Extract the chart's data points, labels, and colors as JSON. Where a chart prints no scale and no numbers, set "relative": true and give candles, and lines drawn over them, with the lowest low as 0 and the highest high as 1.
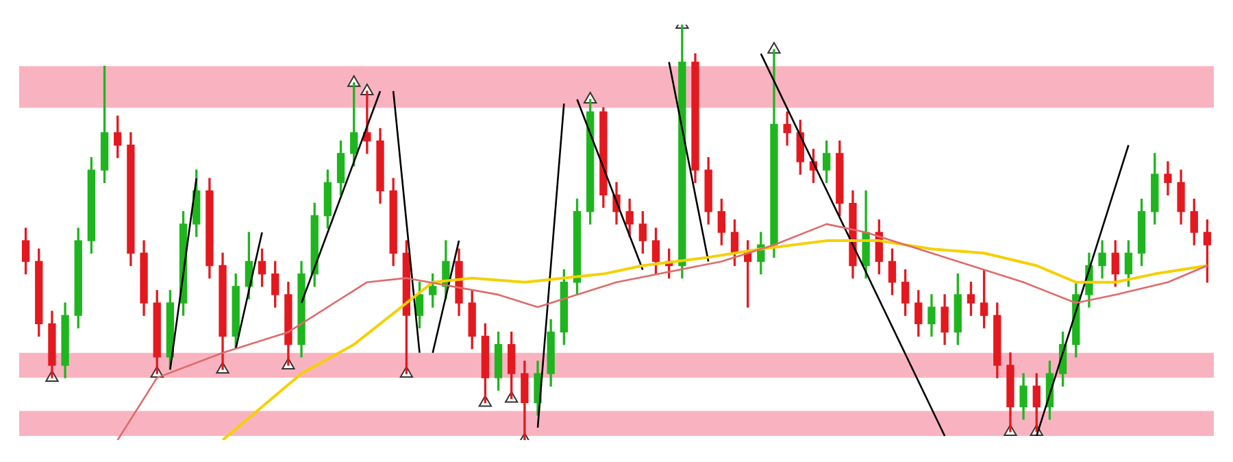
{
  "chart_data": {
    "type": "candlestick",
    "relative": true,
    "categories": [
      null,
      null,
      null,
      null,
      null,
      null,
      null,
      null,
      null,
      null,
      null,
      null,
      null,
      null,
      null,
      null,
      null,
      null,
      null,
      null,
      null,
      null,
      null,
      null,
      null,
      null,
      null,
      null,
      null,
      null,
      null,
      null,
      null,
      null,
      null,
      null,
      null,
      null,
      null,
      null,
      null,
      null,
      null,
      null,
      null,
      null,
      null,
      null,
      null,
      null,
      null,
      null,
      null,
      null,
      null,
      null,
      null,
      null,
      null,
      null,
      null,
      null,
      null,
      null,
      null,
      null,
      null,
      null,
      null,
      null,
      null,
      null,
      null,
      null,
      null,
      null,
      null,
      null,
      null,
      null,
      null,
      null,
      null,
      null,
      null,
      null,
      null,
      null,
      null,
      null,
      null
    ],
    "ohlc": [
      [
        0.48,
        0.51,
        0.4,
        0.43
      ],
      [
        0.43,
        0.46,
        0.25,
        0.28
      ],
      [
        0.28,
        0.31,
        0.15,
        0.18
      ],
      [
        0.18,
        0.33,
        0.15,
        0.3
      ],
      [
        0.3,
        0.51,
        0.27,
        0.48
      ],
      [
        0.48,
        0.68,
        0.45,
        0.65
      ],
      [
        0.65,
        0.9,
        0.62,
        0.74
      ],
      [
        0.74,
        0.78,
        0.68,
        0.71
      ],
      [
        0.71,
        0.74,
        0.42,
        0.45
      ],
      [
        0.45,
        0.48,
        0.3,
        0.33
      ],
      [
        0.33,
        0.36,
        0.16,
        0.2
      ],
      [
        0.2,
        0.36,
        0.17,
        0.33
      ],
      [
        0.33,
        0.55,
        0.3,
        0.52
      ],
      [
        0.52,
        0.65,
        0.49,
        0.6
      ],
      [
        0.6,
        0.63,
        0.39,
        0.42
      ],
      [
        0.42,
        0.45,
        0.17,
        0.25
      ],
      [
        0.25,
        0.4,
        0.22,
        0.37
      ],
      [
        0.37,
        0.5,
        0.34,
        0.43
      ],
      [
        0.43,
        0.46,
        0.37,
        0.4
      ],
      [
        0.4,
        0.43,
        0.32,
        0.35
      ],
      [
        0.35,
        0.38,
        0.18,
        0.23
      ],
      [
        0.23,
        0.43,
        0.2,
        0.4
      ],
      [
        0.4,
        0.57,
        0.37,
        0.54
      ],
      [
        0.54,
        0.65,
        0.51,
        0.62
      ],
      [
        0.62,
        0.72,
        0.59,
        0.69
      ],
      [
        0.69,
        0.86,
        0.66,
        0.74
      ],
      [
        0.74,
        0.84,
        0.69,
        0.72
      ],
      [
        0.72,
        0.75,
        0.57,
        0.6
      ],
      [
        0.6,
        0.63,
        0.42,
        0.45
      ],
      [
        0.45,
        0.48,
        0.16,
        0.3
      ],
      [
        0.3,
        0.38,
        0.27,
        0.35
      ],
      [
        0.35,
        0.4,
        0.32,
        0.37
      ],
      [
        0.37,
        0.48,
        0.34,
        0.43
      ],
      [
        0.43,
        0.46,
        0.3,
        0.33
      ],
      [
        0.33,
        0.36,
        0.22,
        0.25
      ],
      [
        0.25,
        0.28,
        0.09,
        0.15
      ],
      [
        0.15,
        0.26,
        0.12,
        0.23
      ],
      [
        0.23,
        0.26,
        0.1,
        0.16
      ],
      [
        0.16,
        0.19,
        0,
        0.09
      ],
      [
        0.09,
        0.19,
        0.06,
        0.16
      ],
      [
        0.16,
        0.29,
        0.13,
        0.26
      ],
      [
        0.26,
        0.41,
        0.23,
        0.38
      ],
      [
        0.38,
        0.58,
        0.35,
        0.55
      ],
      [
        0.55,
        0.82,
        0.52,
        0.79
      ],
      [
        0.79,
        0.8,
        0.56,
        0.59
      ],
      [
        0.59,
        0.62,
        0.52,
        0.55
      ],
      [
        0.55,
        0.58,
        0.49,
        0.52
      ],
      [
        0.52,
        0.55,
        0.45,
        0.48
      ],
      [
        0.48,
        0.51,
        0.4,
        0.43
      ],
      [
        0.43,
        0.46,
        0.39,
        0.42
      ],
      [
        0.42,
        1,
        0.39,
        0.91
      ],
      [
        0.91,
        0.93,
        0.62,
        0.65
      ],
      [
        0.65,
        0.68,
        0.52,
        0.55
      ],
      [
        0.55,
        0.58,
        0.47,
        0.5
      ],
      [
        0.5,
        0.53,
        0.42,
        0.45
      ],
      [
        0.45,
        0.48,
        0.32,
        0.43
      ],
      [
        0.43,
        0.5,
        0.4,
        0.47
      ],
      [
        0.47,
        0.94,
        0.44,
        0.76
      ],
      [
        0.76,
        0.79,
        0.71,
        0.74
      ],
      [
        0.74,
        0.77,
        0.64,
        0.67
      ],
      [
        0.67,
        0.7,
        0.62,
        0.65
      ],
      [
        0.65,
        0.72,
        0.62,
        0.69
      ],
      [
        0.69,
        0.72,
        0.54,
        0.57
      ],
      [
        0.57,
        0.6,
        0.39,
        0.42
      ],
      [
        0.42,
        0.6,
        0.39,
        0.5
      ],
      [
        0.5,
        0.53,
        0.4,
        0.43
      ],
      [
        0.43,
        0.46,
        0.35,
        0.38
      ],
      [
        0.38,
        0.41,
        0.3,
        0.33
      ],
      [
        0.33,
        0.36,
        0.25,
        0.28
      ],
      [
        0.28,
        0.35,
        0.25,
        0.32
      ],
      [
        0.32,
        0.35,
        0.23,
        0.26
      ],
      [
        0.26,
        0.4,
        0.23,
        0.35
      ],
      [
        0.35,
        0.38,
        0.3,
        0.33
      ],
      [
        0.33,
        0.41,
        0.27,
        0.3
      ],
      [
        0.3,
        0.33,
        0.15,
        0.18
      ],
      [
        0.18,
        0.21,
        0.02,
        0.08
      ],
      [
        0.08,
        0.16,
        0.05,
        0.13
      ],
      [
        0.13,
        0.16,
        0.02,
        0.08
      ],
      [
        0.08,
        0.19,
        0.05,
        0.16
      ],
      [
        0.16,
        0.26,
        0.13,
        0.23
      ],
      [
        0.23,
        0.38,
        0.2,
        0.35
      ],
      [
        0.35,
        0.45,
        0.32,
        0.42
      ],
      [
        0.42,
        0.48,
        0.39,
        0.45
      ],
      [
        0.45,
        0.48,
        0.37,
        0.4
      ],
      [
        0.4,
        0.48,
        0.37,
        0.45
      ],
      [
        0.45,
        0.58,
        0.42,
        0.55
      ],
      [
        0.55,
        0.69,
        0.52,
        0.64
      ],
      [
        0.64,
        0.67,
        0.59,
        0.62
      ],
      [
        0.62,
        0.65,
        0.52,
        0.55
      ],
      [
        0.55,
        0.58,
        0.47,
        0.5
      ],
      [
        0.5,
        0.53,
        0.38,
        0.47
      ]
    ],
    "bands": [
      {
        "axis": "y",
        "from": 0.8,
        "to": 0.9,
        "color": "#f9b3c0"
      },
      {
        "axis": "y",
        "from": 0.15,
        "to": 0.21,
        "color": "#f9b3c0"
      },
      {
        "axis": "y",
        "from": 0.01,
        "to": 0.07,
        "color": "#f9b3c0"
      }
    ],
    "series": [
      {
        "type": "line",
        "color": "#e06a6a",
        "marker": "none",
        "values": [
          null,
          null,
          null,
          null,
          null,
          null,
          null,
          0,
          null,
          null,
          0.15,
          null,
          null,
          null,
          null,
          0.21,
          null,
          null,
          null,
          null,
          0.26,
          null,
          null,
          null,
          null,
          null,
          0.38,
          null,
          null,
          0.39,
          null,
          null,
          null,
          null,
          null,
          null,
          0.35,
          null,
          null,
          0.32,
          null,
          null,
          null,
          null,
          null,
          0.38,
          null,
          null,
          null,
          null,
          null,
          null,
          null,
          0.43,
          null,
          null,
          null,
          0.47,
          null,
          null,
          null,
          0.52,
          null,
          null,
          0.5,
          null,
          null,
          null,
          null,
          0.45,
          null,
          null,
          null,
          null,
          null,
          null,
          0.38,
          null,
          null,
          null,
          0.33,
          null,
          null,
          0.35,
          null,
          null,
          null,
          0.38,
          null,
          null,
          0.42
        ]
      },
      {
        "type": "line",
        "color": "#f5d000",
        "marker": "none",
        "values": [
          null,
          null,
          null,
          null,
          null,
          null,
          null,
          null,
          null,
          null,
          null,
          null,
          null,
          null,
          null,
          0,
          null,
          null,
          0.08,
          null,
          null,
          0.16,
          null,
          null,
          null,
          0.23,
          null,
          null,
          null,
          0.33,
          null,
          0.38,
          null,
          null,
          0.39,
          null,
          null,
          null,
          0.38,
          null,
          null,
          null,
          null,
          null,
          0.4,
          null,
          null,
          0.42,
          null,
          null,
          null,
          null,
          0.44,
          null,
          null,
          null,
          0.46,
          null,
          null,
          null,
          null,
          0.48,
          null,
          null,
          null,
          0.48,
          null,
          null,
          null,
          0.46,
          null,
          null,
          null,
          0.45,
          null,
          null,
          null,
          0.42,
          null,
          null,
          0.38,
          null,
          null,
          0.38,
          null,
          null,
          0.4,
          null,
          null,
          null,
          0.42
        ]
      },
      {
        "type": "line",
        "color": "#000000",
        "marker": "none",
        "values": [
          null,
          null,
          null,
          null,
          null,
          null,
          null,
          null,
          null,
          null,
          null,
          0.17,
          null,
          0.63,
          null,
          null,
          null,
          null,
          null,
          null,
          null,
          null,
          null,
          null,
          null,
          null,
          null,
          null,
          null,
          null,
          null,
          null,
          null,
          null,
          null,
          null,
          null,
          null,
          null,
          null,
          null,
          null,
          null,
          null,
          null,
          null,
          null,
          null,
          null,
          null,
          null,
          null,
          null,
          null,
          null,
          null,
          null,
          null,
          null,
          null,
          null,
          null,
          null,
          null,
          null,
          null,
          null,
          null,
          null,
          null,
          null,
          null,
          null,
          null,
          null,
          null,
          null,
          null,
          null,
          null,
          null,
          null,
          null,
          null,
          null,
          null,
          null,
          null,
          null,
          null,
          null
        ]
      },
      {
        "type": "line",
        "color": "#000000",
        "marker": "none",
        "values": [
          null,
          null,
          null,
          null,
          null,
          null,
          null,
          null,
          null,
          null,
          null,
          null,
          null,
          null,
          null,
          null,
          0.22,
          null,
          0.5,
          null,
          null,
          null,
          null,
          null,
          null,
          null,
          null,
          null,
          null,
          null,
          null,
          null,
          null,
          null,
          null,
          null,
          null,
          null,
          null,
          null,
          null,
          null,
          null,
          null,
          null,
          null,
          null,
          null,
          null,
          null,
          null,
          null,
          null,
          null,
          null,
          null,
          null,
          null,
          null,
          null,
          null,
          null,
          null,
          null,
          null,
          null,
          null,
          null,
          null,
          null,
          null,
          null,
          null,
          null,
          null,
          null,
          null,
          null,
          null,
          null,
          null,
          null,
          null,
          null,
          null,
          null,
          null,
          null,
          null,
          null,
          null
        ]
      },
      {
        "type": "line",
        "color": "#000000",
        "marker": "none",
        "values": [
          null,
          null,
          null,
          null,
          null,
          null,
          null,
          null,
          null,
          null,
          null,
          null,
          null,
          null,
          null,
          null,
          null,
          null,
          null,
          null,
          null,
          0.33,
          null,
          null,
          null,
          null,
          null,
          0.84,
          null,
          null,
          null,
          null,
          null,
          null,
          null,
          null,
          null,
          null,
          null,
          null,
          null,
          null,
          null,
          null,
          null,
          null,
          null,
          null,
          null,
          null,
          null,
          null,
          null,
          null,
          null,
          null,
          null,
          null,
          null,
          null,
          null,
          null,
          null,
          null,
          null,
          null,
          null,
          null,
          null,
          null,
          null,
          null,
          null,
          null,
          null,
          null,
          null,
          null,
          null,
          null,
          null,
          null,
          null,
          null,
          null,
          null,
          null,
          null,
          null,
          null,
          null
        ]
      },
      {
        "type": "line",
        "color": "#000000",
        "marker": "none",
        "values": [
          null,
          null,
          null,
          null,
          null,
          null,
          null,
          null,
          null,
          null,
          null,
          null,
          null,
          null,
          null,
          null,
          null,
          null,
          null,
          null,
          null,
          null,
          null,
          null,
          null,
          null,
          null,
          null,
          0.84,
          null,
          0.21,
          null,
          null,
          null,
          null,
          null,
          null,
          null,
          null,
          null,
          null,
          null,
          null,
          null,
          null,
          null,
          null,
          null,
          null,
          null,
          null,
          null,
          null,
          null,
          null,
          null,
          null,
          null,
          null,
          null,
          null,
          null,
          null,
          null,
          null,
          null,
          null,
          null,
          null,
          null,
          null,
          null,
          null,
          null,
          null,
          null,
          null,
          null,
          null,
          null,
          null,
          null,
          null,
          null,
          null,
          null,
          null,
          null,
          null,
          null,
          null
        ]
      },
      {
        "type": "line",
        "color": "#000000",
        "marker": "none",
        "values": [
          null,
          null,
          null,
          null,
          null,
          null,
          null,
          null,
          null,
          null,
          null,
          null,
          null,
          null,
          null,
          null,
          null,
          null,
          null,
          null,
          null,
          null,
          null,
          null,
          null,
          null,
          null,
          null,
          null,
          null,
          null,
          0.21,
          null,
          0.48,
          null,
          null,
          null,
          null,
          null,
          null,
          null,
          null,
          null,
          null,
          null,
          null,
          null,
          null,
          null,
          null,
          null,
          null,
          null,
          null,
          null,
          null,
          null,
          null,
          null,
          null,
          null,
          null,
          null,
          null,
          null,
          null,
          null,
          null,
          null,
          null,
          null,
          null,
          null,
          null,
          null,
          null,
          null,
          null,
          null,
          null,
          null,
          null,
          null,
          null,
          null,
          null,
          null,
          null,
          null,
          null,
          null
        ]
      },
      {
        "type": "line",
        "color": "#000000",
        "marker": "none",
        "values": [
          null,
          null,
          null,
          null,
          null,
          null,
          null,
          null,
          null,
          null,
          null,
          null,
          null,
          null,
          null,
          null,
          null,
          null,
          null,
          null,
          null,
          null,
          null,
          null,
          null,
          null,
          null,
          null,
          null,
          null,
          null,
          null,
          null,
          null,
          null,
          null,
          null,
          null,
          null,
          0.03,
          null,
          0.81,
          null,
          null,
          null,
          null,
          null,
          null,
          null,
          null,
          null,
          null,
          null,
          null,
          null,
          null,
          null,
          null,
          null,
          null,
          null,
          null,
          null,
          null,
          null,
          null,
          null,
          null,
          null,
          null,
          null,
          null,
          null,
          null,
          null,
          null,
          null,
          null,
          null,
          null,
          null,
          null,
          null,
          null,
          null,
          null,
          null,
          null,
          null,
          null,
          null
        ]
      },
      {
        "type": "line",
        "color": "#000000",
        "marker": "none",
        "values": [
          null,
          null,
          null,
          null,
          null,
          null,
          null,
          null,
          null,
          null,
          null,
          null,
          null,
          null,
          null,
          null,
          null,
          null,
          null,
          null,
          null,
          null,
          null,
          null,
          null,
          null,
          null,
          null,
          null,
          null,
          null,
          null,
          null,
          null,
          null,
          null,
          null,
          null,
          null,
          null,
          null,
          null,
          0.82,
          null,
          null,
          null,
          null,
          0.41,
          null,
          null,
          null,
          null,
          null,
          null,
          null,
          null,
          null,
          null,
          null,
          null,
          null,
          null,
          null,
          null,
          null,
          null,
          null,
          null,
          null,
          null,
          null,
          null,
          null,
          null,
          null,
          null,
          null,
          null,
          null,
          null,
          null,
          null,
          null,
          null,
          null,
          null,
          null,
          null,
          null,
          null,
          null
        ]
      },
      {
        "type": "line",
        "color": "#000000",
        "marker": "none",
        "values": [
          null,
          null,
          null,
          null,
          null,
          null,
          null,
          null,
          null,
          null,
          null,
          null,
          null,
          null,
          null,
          null,
          null,
          null,
          null,
          null,
          null,
          null,
          null,
          null,
          null,
          null,
          null,
          null,
          null,
          null,
          null,
          null,
          null,
          null,
          null,
          null,
          null,
          null,
          null,
          null,
          null,
          null,
          null,
          null,
          null,
          null,
          null,
          null,
          null,
          0.91,
          null,
          null,
          0.43,
          null,
          null,
          null,
          null,
          null,
          null,
          null,
          null,
          null,
          null,
          null,
          null,
          null,
          null,
          null,
          null,
          null,
          null,
          null,
          null,
          null,
          null,
          null,
          null,
          null,
          null,
          null,
          null,
          null,
          null,
          null,
          null,
          null,
          null,
          null,
          null,
          null,
          null
        ]
      },
      {
        "type": "line",
        "color": "#000000",
        "marker": "none",
        "values": [
          null,
          null,
          null,
          null,
          null,
          null,
          null,
          null,
          null,
          null,
          null,
          null,
          null,
          null,
          null,
          null,
          null,
          null,
          null,
          null,
          null,
          null,
          null,
          null,
          null,
          null,
          null,
          null,
          null,
          null,
          null,
          null,
          null,
          null,
          null,
          null,
          null,
          null,
          null,
          null,
          null,
          null,
          null,
          null,
          null,
          null,
          null,
          null,
          null,
          null,
          null,
          null,
          null,
          null,
          null,
          null,
          0.93,
          null,
          null,
          null,
          null,
          null,
          null,
          null,
          null,
          null,
          null,
          null,
          null,
          null,
          0.01,
          null,
          null,
          null,
          null,
          null,
          null,
          null,
          null,
          null,
          null,
          null,
          null,
          null,
          null,
          null,
          null,
          null,
          null,
          null,
          null
        ]
      },
      {
        "type": "line",
        "color": "#000000",
        "marker": "none",
        "values": [
          null,
          null,
          null,
          null,
          null,
          null,
          null,
          null,
          null,
          null,
          null,
          null,
          null,
          null,
          null,
          null,
          null,
          null,
          null,
          null,
          null,
          null,
          null,
          null,
          null,
          null,
          null,
          null,
          null,
          null,
          null,
          null,
          null,
          null,
          null,
          null,
          null,
          null,
          null,
          null,
          null,
          null,
          null,
          null,
          null,
          null,
          null,
          null,
          null,
          null,
          null,
          null,
          null,
          null,
          null,
          null,
          null,
          null,
          null,
          null,
          null,
          null,
          null,
          null,
          null,
          null,
          null,
          null,
          null,
          null,
          null,
          null,
          null,
          null,
          null,
          null,
          null,
          0.01,
          null,
          null,
          null,
          null,
          null,
          null,
          0.71,
          null,
          null,
          null,
          null,
          null,
          null
        ]
      },
      {
        "type": "scatter",
        "color": "#ffffff",
        "marker": "triangle",
        "values": [
          null,
          null,
          0.15,
          null,
          null,
          null,
          null,
          null,
          null,
          null,
          0.16,
          null,
          null,
          null,
          null,
          0.17,
          null,
          null,
          null,
          null,
          0.18,
          null,
          null,
          null,
          null,
          null,
          null,
          null,
          null,
          0.16,
          null,
          null,
          null,
          null,
          null,
          0.09,
          null,
          0.1,
          0,
          null,
          null,
          null,
          null,
          null,
          null,
          null,
          null,
          null,
          null,
          null,
          null,
          null,
          null,
          null,
          null,
          null,
          null,
          null,
          null,
          null,
          null,
          null,
          null,
          null,
          null,
          null,
          null,
          null,
          null,
          null,
          null,
          null,
          null,
          null,
          null,
          0.02,
          null,
          0.02,
          null,
          null,
          null,
          null,
          null,
          null,
          null,
          null,
          null,
          null,
          null,
          null,
          null
        ]
      },
      {
        "type": "scatter",
        "color": "#ffffff",
        "marker": "triangle",
        "values": [
          null,
          null,
          null,
          null,
          null,
          null,
          null,
          null,
          null,
          null,
          null,
          null,
          null,
          null,
          null,
          null,
          null,
          null,
          null,
          null,
          null,
          null,
          null,
          null,
          null,
          0.86,
          0.84,
          null,
          null,
          null,
          null,
          null,
          null,
          null,
          null,
          null,
          null,
          null,
          null,
          null,
          null,
          null,
          null,
          0.82,
          null,
          null,
          null,
          null,
          null,
          null,
          1,
          null,
          null,
          null,
          null,
          null,
          null,
          0.94,
          null,
          null,
          null,
          null,
          null,
          null,
          null,
          null,
          null,
          null,
          null,
          null,
          null,
          null,
          null,
          null,
          null,
          null,
          null,
          null,
          null,
          null,
          null,
          null,
          null,
          null,
          null,
          null,
          null,
          null,
          null,
          null,
          null
        ]
      }
    ]
  }
}
